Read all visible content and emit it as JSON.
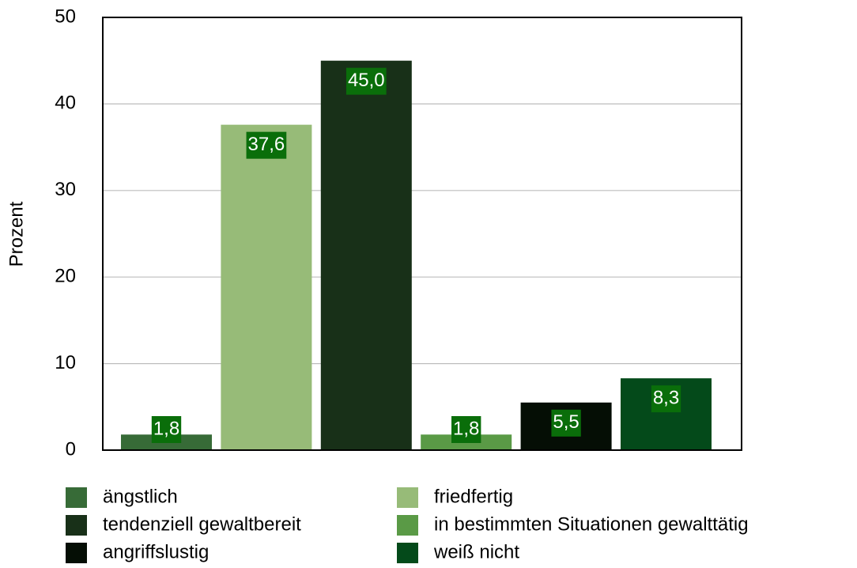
{
  "chart_data": {
    "type": "bar",
    "y_label": "Prozent",
    "series": [
      {
        "name": "ängstlich",
        "color": "#376b37",
        "values": [
          1.8
        ],
        "value_labels": [
          "1,8"
        ]
      },
      {
        "name": "friedfertig",
        "color": "#97bb78",
        "values": [
          37.6
        ],
        "value_labels": [
          "37,6"
        ]
      },
      {
        "name": "tendenziell gewaltbereit",
        "color": "#183018",
        "values": [
          45.0
        ],
        "value_labels": [
          "45,0"
        ]
      },
      {
        "name": "in bestimmten Situationen gewalttätig",
        "color": "#5a9a46",
        "values": [
          1.8
        ],
        "value_labels": [
          "1,8"
        ]
      },
      {
        "name": "angriffslustig",
        "color": "#050e05",
        "values": [
          5.5
        ],
        "value_labels": [
          "5,5"
        ]
      },
      {
        "name": "weiß nicht",
        "color": "#044a1a",
        "values": [
          8.3
        ],
        "value_labels": [
          "8,3"
        ]
      }
    ],
    "ylim": [
      0,
      50
    ],
    "yticks": [
      0,
      10,
      20,
      30,
      40,
      50
    ],
    "grid": true,
    "legend": "bottom"
  }
}
